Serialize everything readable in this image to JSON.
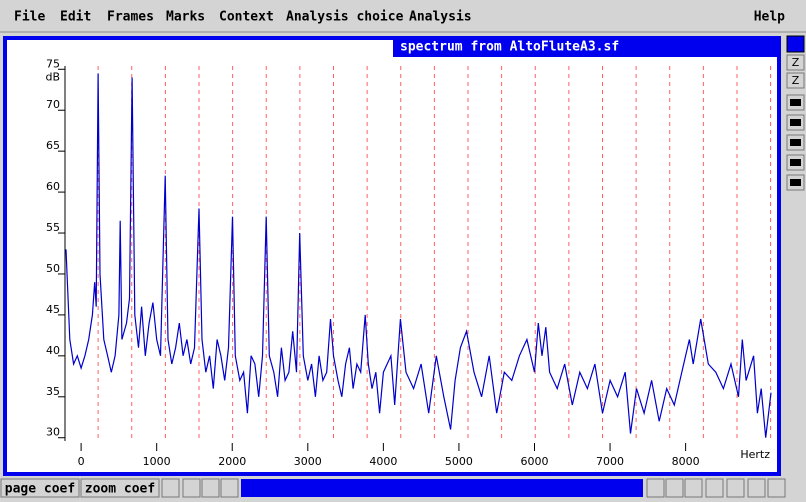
{
  "menu": [
    "File",
    "Edit",
    "Frames",
    "Marks",
    "Context",
    "Analysis choice",
    "Analysis"
  ],
  "help": "Help",
  "window_title": "spectrum from AltoFluteA3.sf",
  "side_buttons": [
    "Z",
    "Z"
  ],
  "bottom_buttons": [
    "page coef",
    "zoom coef"
  ],
  "chart_data": {
    "type": "line",
    "y_label": "dB",
    "x_label": "Hertz",
    "color": "#0000cc",
    "harmonic_color": "#ff6060",
    "xlim": [
      -200,
      9130
    ],
    "ylim": [
      29.6,
      75.4
    ],
    "xticks": [
      0,
      1000,
      2000,
      3000,
      4000,
      5000,
      6000,
      7000,
      8000
    ],
    "yticks": [
      30,
      35,
      40,
      45,
      50,
      55,
      60,
      65,
      70,
      75
    ],
    "harmonic_lines": [
      225,
      670,
      1115,
      1560,
      2005,
      2450,
      2895,
      3340,
      3785,
      4230,
      4675,
      5120,
      5565,
      6010,
      6455,
      6900,
      7345,
      7790,
      8235,
      8680,
      9125
    ],
    "x": [
      -200,
      -150,
      -100,
      -50,
      0,
      50,
      100,
      150,
      180,
      200,
      225,
      250,
      300,
      350,
      400,
      450,
      500,
      517,
      540,
      600,
      640,
      675,
      710,
      760,
      800,
      850,
      900,
      950,
      1000,
      1050,
      1113,
      1150,
      1200,
      1250,
      1300,
      1350,
      1400,
      1450,
      1500,
      1560,
      1600,
      1650,
      1700,
      1750,
      1800,
      1850,
      1900,
      1950,
      2003,
      2040,
      2100,
      2150,
      2200,
      2250,
      2300,
      2350,
      2400,
      2449,
      2490,
      2550,
      2600,
      2650,
      2700,
      2750,
      2800,
      2850,
      2893,
      2940,
      3000,
      3050,
      3100,
      3150,
      3200,
      3250,
      3300,
      3340,
      3400,
      3450,
      3500,
      3550,
      3600,
      3650,
      3700,
      3760,
      3800,
      3850,
      3900,
      3950,
      4000,
      4100,
      4150,
      4225,
      4300,
      4400,
      4500,
      4600,
      4700,
      4800,
      4890,
      4950,
      5020,
      5100,
      5200,
      5300,
      5400,
      5500,
      5600,
      5700,
      5800,
      5900,
      6000,
      6050,
      6100,
      6150,
      6200,
      6300,
      6400,
      6500,
      6600,
      6700,
      6800,
      6900,
      7000,
      7100,
      7200,
      7270,
      7350,
      7450,
      7550,
      7650,
      7750,
      7850,
      7950,
      8000,
      8050,
      8100,
      8200,
      8300,
      8400,
      8500,
      8600,
      8700,
      8750,
      8800,
      8900,
      8950,
      9000,
      9060,
      9130
    ],
    "values": [
      53,
      42,
      39,
      40,
      38.5,
      40,
      42,
      45,
      49,
      46,
      74.5,
      50,
      42,
      40,
      38,
      40,
      45,
      56.5,
      42,
      44,
      47,
      74,
      45,
      41,
      46,
      40,
      44,
      46.5,
      42,
      40,
      62,
      42,
      39,
      41,
      44,
      40,
      42,
      39,
      41,
      58,
      42,
      38,
      40,
      36,
      42,
      40,
      37,
      41,
      57,
      40,
      37,
      38,
      33,
      40,
      39,
      35,
      40,
      57,
      40,
      38,
      35,
      41,
      37,
      38,
      43,
      38,
      55,
      40,
      37,
      39,
      35,
      40,
      37,
      38,
      44.5,
      40,
      37,
      35,
      39,
      41,
      36,
      39,
      38,
      45,
      39,
      36,
      38,
      33,
      38,
      40,
      34,
      44.5,
      38,
      36,
      39,
      33,
      40,
      35,
      31,
      37,
      41,
      43,
      38,
      35,
      40,
      33,
      38,
      37,
      40,
      42,
      38,
      44,
      40,
      43.5,
      38,
      36,
      39,
      34,
      38,
      36,
      39,
      33,
      37,
      35,
      38,
      30.5,
      36,
      33,
      37,
      32,
      36,
      34,
      38,
      40,
      42,
      39,
      44.5,
      39,
      38,
      36,
      39,
      35,
      42,
      37,
      40,
      33,
      36,
      30,
      35.5
    ]
  }
}
